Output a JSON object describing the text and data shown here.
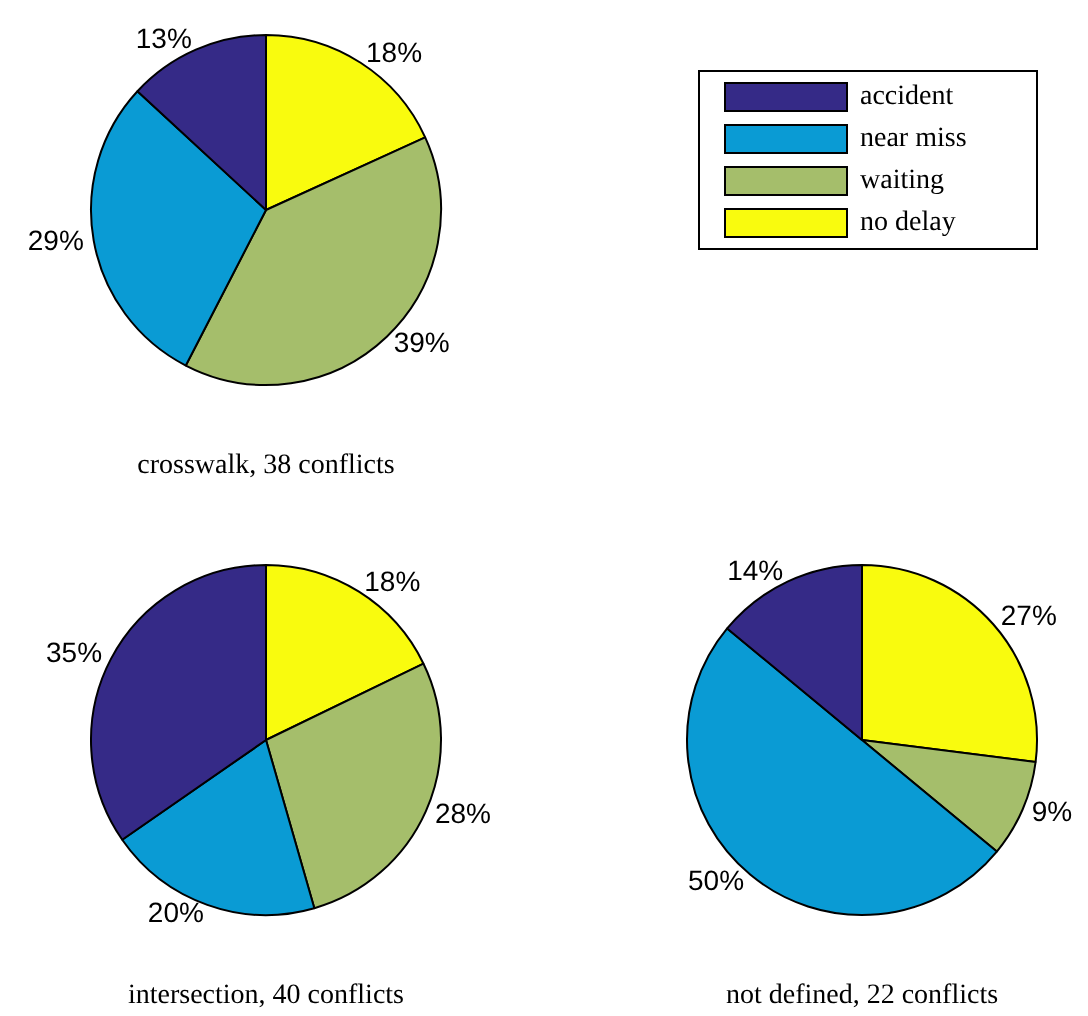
{
  "chart_data": [
    {
      "type": "pie",
      "title": "crosswalk, 38 conflicts",
      "categories": [
        "accident",
        "near miss",
        "waiting",
        "no delay"
      ],
      "values": [
        13,
        29,
        39,
        18
      ],
      "value_labels": [
        "13%",
        "29%",
        "39%",
        "18%"
      ],
      "colors": [
        "#352a87",
        "#0a9bd4",
        "#a5be6b",
        "#f9fb0e"
      ],
      "legend": "top right"
    },
    {
      "type": "pie",
      "title": "intersection, 40 conflicts",
      "categories": [
        null,
        null,
        null,
        null
      ],
      "values": [
        35,
        20,
        28,
        18
      ],
      "value_labels": [
        "35%",
        "20%",
        "28%",
        "18%"
      ],
      "colors": [
        "#352a87",
        "#0a9bd4",
        "#a5be6b",
        "#f9fb0e"
      ]
    },
    {
      "type": "pie",
      "title": "not defined, 22 conflicts",
      "categories": [
        null,
        null,
        null,
        null
      ],
      "values": [
        14,
        50,
        9,
        27
      ],
      "value_labels": [
        "14%",
        "50%",
        "9%",
        "27%"
      ],
      "colors": [
        "#352a87",
        "#0a9bd4",
        "#a5be6b",
        "#f9fb0e"
      ]
    }
  ]
}
